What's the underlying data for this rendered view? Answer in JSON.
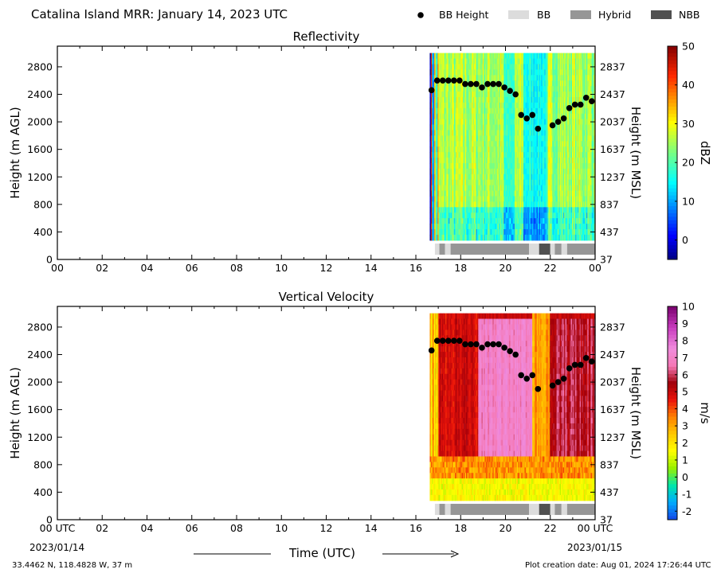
{
  "header": {
    "title": "Catalina Island MRR:  January 14, 2023 UTC",
    "legend": [
      {
        "label": "BB Height",
        "type": "dot",
        "color": "#000000"
      },
      {
        "label": "BB",
        "type": "swatch",
        "color": "#dcdcdc"
      },
      {
        "label": "Hybrid",
        "type": "swatch",
        "color": "#969696"
      },
      {
        "label": "NBB",
        "type": "swatch",
        "color": "#505050"
      }
    ]
  },
  "footer": {
    "coords": "33.4462 N, 118.4828 W, 37 m",
    "created": "Plot creation date: Aug 01, 2024 17:26:44 UTC",
    "xlabel": "Time (UTC)",
    "date_start": "2023/01/14",
    "date_end": "2023/01/15"
  },
  "chart_data": [
    {
      "type": "heatmap",
      "title": "Reflectivity",
      "ylabel": "Height (m AGL)",
      "ylabel_right": "Height (m MSL)",
      "xlim": [
        0,
        24
      ],
      "ylim": [
        0,
        3100
      ],
      "xticks": [
        "00",
        "02",
        "04",
        "06",
        "08",
        "10",
        "12",
        "14",
        "16",
        "18",
        "20",
        "22",
        "00"
      ],
      "yticks_left": [
        "0",
        "400",
        "800",
        "1200",
        "1600",
        "2000",
        "2400",
        "2800"
      ],
      "yticks_right": [
        "37",
        "437",
        "837",
        "1237",
        "1637",
        "2037",
        "2437",
        "2837"
      ],
      "colorbar": {
        "label": "dBZ",
        "range": [
          -5,
          50
        ],
        "ticks": [
          "0",
          "10",
          "20",
          "30",
          "40",
          "50"
        ]
      },
      "data_time_range": [
        16.62,
        24.0
      ],
      "data_height_range": [
        280,
        3000
      ],
      "bb_height": {
        "time": [
          16.7,
          16.95,
          17.2,
          17.45,
          17.7,
          17.95,
          18.2,
          18.45,
          18.7,
          18.95,
          19.2,
          19.45,
          19.7,
          19.95,
          20.2,
          20.45,
          20.7,
          20.95,
          21.2,
          21.45,
          22.1,
          22.35,
          22.6,
          22.85,
          23.1,
          23.35,
          23.6,
          23.85
        ],
        "height": [
          2460,
          2600,
          2600,
          2600,
          2600,
          2600,
          2550,
          2550,
          2550,
          2500,
          2550,
          2550,
          2550,
          2500,
          2450,
          2400,
          2100,
          2050,
          2100,
          1900,
          1950,
          2000,
          2050,
          2200,
          2250,
          2250,
          2350,
          2300
        ]
      },
      "bb_type": [
        {
          "start": 16.85,
          "end": 17.05,
          "type": "BB"
        },
        {
          "start": 17.05,
          "end": 17.3,
          "type": "Hybrid"
        },
        {
          "start": 17.3,
          "end": 17.55,
          "type": "BB"
        },
        {
          "start": 17.55,
          "end": 21.05,
          "type": "Hybrid"
        },
        {
          "start": 21.05,
          "end": 21.5,
          "type": "BB"
        },
        {
          "start": 21.5,
          "end": 22.0,
          "type": "NBB"
        },
        {
          "start": 22.0,
          "end": 22.2,
          "type": "BB"
        },
        {
          "start": 22.2,
          "end": 22.5,
          "type": "Hybrid"
        },
        {
          "start": 22.5,
          "end": 22.75,
          "type": "BB"
        },
        {
          "start": 22.75,
          "end": 24.0,
          "type": "Hybrid"
        }
      ]
    },
    {
      "type": "heatmap",
      "title": "Vertical Velocity",
      "ylabel": "Height (m AGL)",
      "ylabel_right": "Height (m MSL)",
      "xlim": [
        0,
        24
      ],
      "ylim": [
        0,
        3100
      ],
      "xticks": [
        "00 UTC",
        "02",
        "04",
        "06",
        "08",
        "10",
        "12",
        "14",
        "16",
        "18",
        "20",
        "22",
        "00 UTC"
      ],
      "yticks_left": [
        "0",
        "400",
        "800",
        "1200",
        "1600",
        "2000",
        "2400",
        "2800"
      ],
      "yticks_right": [
        "37",
        "437",
        "837",
        "1237",
        "1637",
        "2037",
        "2437",
        "2837"
      ],
      "colorbar": {
        "label": "m/s",
        "range": [
          -2.5,
          10
        ],
        "ticks": [
          "-2",
          "-1",
          "0",
          "1",
          "2",
          "3",
          "4",
          "5",
          "6",
          "7",
          "8",
          "9",
          "10"
        ]
      },
      "data_time_range": [
        16.62,
        24.0
      ],
      "data_height_range": [
        280,
        3000
      ],
      "bb_height": {
        "time": [
          16.7,
          16.95,
          17.2,
          17.45,
          17.7,
          17.95,
          18.2,
          18.45,
          18.7,
          18.95,
          19.2,
          19.45,
          19.7,
          19.95,
          20.2,
          20.45,
          20.7,
          20.95,
          21.2,
          21.45,
          22.1,
          22.35,
          22.6,
          22.85,
          23.1,
          23.35,
          23.6,
          23.85
        ],
        "height": [
          2460,
          2600,
          2600,
          2600,
          2600,
          2600,
          2550,
          2550,
          2550,
          2500,
          2550,
          2550,
          2550,
          2500,
          2450,
          2400,
          2100,
          2050,
          2100,
          1900,
          1950,
          2000,
          2050,
          2200,
          2250,
          2250,
          2350,
          2300
        ]
      },
      "bb_type": [
        {
          "start": 16.85,
          "end": 17.05,
          "type": "BB"
        },
        {
          "start": 17.05,
          "end": 17.3,
          "type": "Hybrid"
        },
        {
          "start": 17.3,
          "end": 17.55,
          "type": "BB"
        },
        {
          "start": 17.55,
          "end": 21.05,
          "type": "Hybrid"
        },
        {
          "start": 21.05,
          "end": 21.5,
          "type": "BB"
        },
        {
          "start": 21.5,
          "end": 22.0,
          "type": "NBB"
        },
        {
          "start": 22.0,
          "end": 22.2,
          "type": "BB"
        },
        {
          "start": 22.2,
          "end": 22.5,
          "type": "Hybrid"
        },
        {
          "start": 22.5,
          "end": 22.75,
          "type": "BB"
        },
        {
          "start": 22.75,
          "end": 24.0,
          "type": "Hybrid"
        }
      ]
    }
  ]
}
